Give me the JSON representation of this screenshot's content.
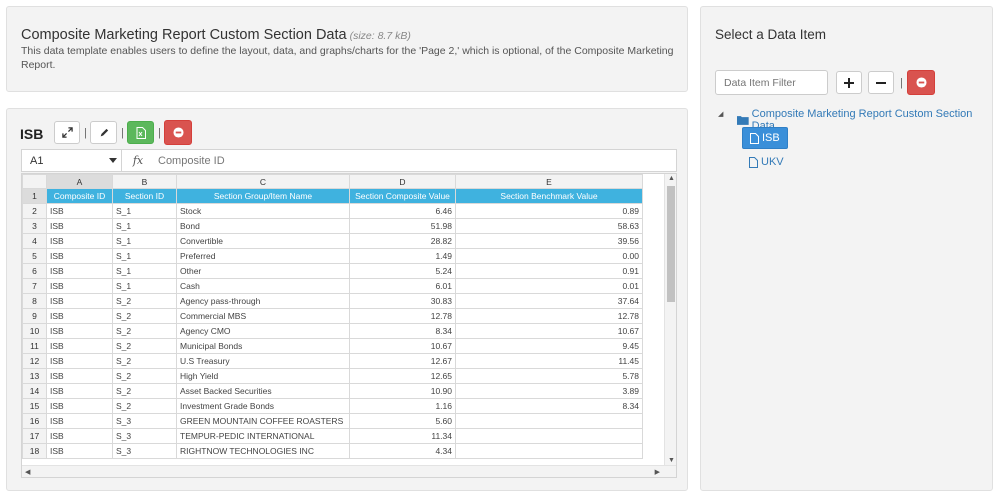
{
  "header": {
    "title": "Composite Marketing Report Custom Section Data",
    "size": "(size: 8.7 kB)",
    "description": "This data template enables users to define the layout, data, and graphs/charts for the 'Page 2,' which is optional, of the Composite Marketing Report."
  },
  "grid": {
    "title": "ISB",
    "separator": "|",
    "cell_ref": "A1",
    "fx": "fx",
    "formula_value": "Composite ID",
    "col_letters": [
      "A",
      "B",
      "C",
      "D",
      "E"
    ],
    "header_row": {
      "num": "1",
      "cells": [
        "Composite ID",
        "Section ID",
        "Section Group/Item Name",
        "Section Composite Value",
        "Section Benchmark Value"
      ]
    },
    "rows": [
      {
        "num": "2",
        "a": "ISB",
        "b": "S_1",
        "c": "Stock",
        "d": "6.46",
        "e": "0.89"
      },
      {
        "num": "3",
        "a": "ISB",
        "b": "S_1",
        "c": "Bond",
        "d": "51.98",
        "e": "58.63"
      },
      {
        "num": "4",
        "a": "ISB",
        "b": "S_1",
        "c": "Convertible",
        "d": "28.82",
        "e": "39.56"
      },
      {
        "num": "5",
        "a": "ISB",
        "b": "S_1",
        "c": "Preferred",
        "d": "1.49",
        "e": "0.00"
      },
      {
        "num": "6",
        "a": "ISB",
        "b": "S_1",
        "c": "Other",
        "d": "5.24",
        "e": "0.91"
      },
      {
        "num": "7",
        "a": "ISB",
        "b": "S_1",
        "c": "Cash",
        "d": "6.01",
        "e": "0.01"
      },
      {
        "num": "8",
        "a": "ISB",
        "b": "S_2",
        "c": "Agency pass-through",
        "d": "30.83",
        "e": "37.64"
      },
      {
        "num": "9",
        "a": "ISB",
        "b": "S_2",
        "c": "Commercial MBS",
        "d": "12.78",
        "e": "12.78"
      },
      {
        "num": "10",
        "a": "ISB",
        "b": "S_2",
        "c": "Agency CMO",
        "d": "8.34",
        "e": "10.67"
      },
      {
        "num": "11",
        "a": "ISB",
        "b": "S_2",
        "c": "Municipal Bonds",
        "d": "10.67",
        "e": "9.45"
      },
      {
        "num": "12",
        "a": "ISB",
        "b": "S_2",
        "c": "U.S Treasury",
        "d": "12.67",
        "e": "11.45"
      },
      {
        "num": "13",
        "a": "ISB",
        "b": "S_2",
        "c": "High Yield",
        "d": "12.65",
        "e": "5.78"
      },
      {
        "num": "14",
        "a": "ISB",
        "b": "S_2",
        "c": "Asset Backed Securities",
        "d": "10.90",
        "e": "3.89"
      },
      {
        "num": "15",
        "a": "ISB",
        "b": "S_2",
        "c": "Investment Grade Bonds",
        "d": "1.16",
        "e": "8.34"
      },
      {
        "num": "16",
        "a": "ISB",
        "b": "S_3",
        "c": "GREEN MOUNTAIN COFFEE ROASTERS",
        "d": "5.60",
        "e": ""
      },
      {
        "num": "17",
        "a": "ISB",
        "b": "S_3",
        "c": "TEMPUR-PEDIC INTERNATIONAL",
        "d": "11.34",
        "e": ""
      },
      {
        "num": "18",
        "a": "ISB",
        "b": "S_3",
        "c": "RIGHTNOW TECHNOLOGIES INC",
        "d": "4.34",
        "e": ""
      }
    ]
  },
  "sidebar": {
    "title": "Select a Data Item",
    "filter_placeholder": "Data Item Filter",
    "separator": "|",
    "tree": {
      "root_label": "Composite Marketing Report Custom Section Data",
      "items": [
        {
          "label": "ISB",
          "selected": true
        },
        {
          "label": "UKV",
          "selected": false
        }
      ]
    }
  },
  "icons": {
    "expand": "expand-icon",
    "edit": "pencil-icon",
    "excel": "excel-file-icon",
    "remove": "minus-circle-icon",
    "plus": "plus-icon",
    "minus": "minus-icon",
    "folder": "folder-icon",
    "file": "file-icon"
  },
  "colors": {
    "header_cell": "#3fb2df",
    "green_button": "#5cb85c",
    "red_button": "#d9534f",
    "selected_node": "#3a8fd9",
    "link": "#337ab7"
  }
}
